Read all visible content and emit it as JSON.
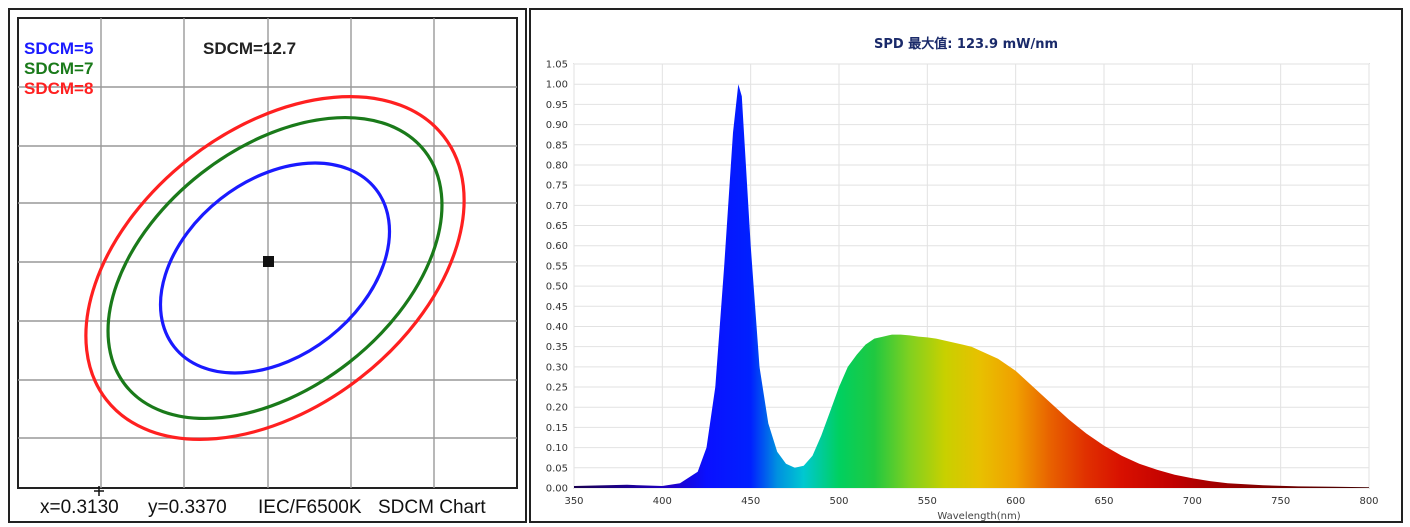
{
  "chart_data": [
    {
      "type": "line",
      "name": "sdcm-ellipse-chart",
      "legend": [
        {
          "label": "SDCM=5",
          "color": "#1a1aff"
        },
        {
          "label": "SDCM=7",
          "color": "#1a7a1a"
        },
        {
          "label": "SDCM=8",
          "color": "#ff2020"
        }
      ],
      "sdcm_value_label": "SDCM=12.7",
      "caption": {
        "x_text": "x=0.3130",
        "y_text": "y=0.3370",
        "standard_text": "IEC/F6500K",
        "chart_text": "SDCM Chart"
      },
      "center": {
        "x": 0.313,
        "y": 0.337
      },
      "ellipses": [
        {
          "sdcm": 5,
          "color": "#1a1aff"
        },
        {
          "sdcm": 7,
          "color": "#1a7a1a"
        },
        {
          "sdcm": 8,
          "color": "#ff2020"
        }
      ],
      "grid": true
    },
    {
      "type": "area",
      "name": "spd-chart",
      "title": "SPD 最大值: 123.9 mW/nm",
      "xlabel": "Wavelength(nm)",
      "ylabel": "",
      "xlim": [
        350,
        800
      ],
      "ylim": [
        0,
        1.05
      ],
      "x_ticks": [
        350,
        400,
        450,
        500,
        550,
        600,
        650,
        700,
        750,
        800
      ],
      "y_ticks": [
        0.0,
        0.05,
        0.1,
        0.15,
        0.2,
        0.25,
        0.3,
        0.35,
        0.4,
        0.45,
        0.5,
        0.55,
        0.6,
        0.65,
        0.7,
        0.75,
        0.8,
        0.85,
        0.9,
        0.95,
        1.0,
        1.05
      ],
      "grid": true,
      "x": [
        350,
        380,
        400,
        410,
        420,
        425,
        430,
        435,
        440,
        443,
        445,
        450,
        455,
        460,
        465,
        470,
        475,
        480,
        485,
        490,
        495,
        500,
        505,
        510,
        515,
        520,
        525,
        530,
        535,
        540,
        545,
        550,
        555,
        560,
        565,
        570,
        575,
        580,
        590,
        600,
        610,
        620,
        630,
        640,
        650,
        660,
        670,
        680,
        690,
        700,
        710,
        720,
        740,
        760,
        780,
        800
      ],
      "values": [
        0.005,
        0.008,
        0.005,
        0.012,
        0.04,
        0.1,
        0.25,
        0.55,
        0.88,
        1.0,
        0.97,
        0.6,
        0.3,
        0.16,
        0.09,
        0.06,
        0.05,
        0.055,
        0.08,
        0.13,
        0.19,
        0.25,
        0.3,
        0.33,
        0.355,
        0.37,
        0.375,
        0.38,
        0.38,
        0.378,
        0.375,
        0.373,
        0.37,
        0.365,
        0.36,
        0.355,
        0.35,
        0.34,
        0.32,
        0.29,
        0.25,
        0.21,
        0.17,
        0.135,
        0.105,
        0.08,
        0.06,
        0.045,
        0.033,
        0.024,
        0.017,
        0.012,
        0.007,
        0.004,
        0.003,
        0.002
      ]
    }
  ]
}
